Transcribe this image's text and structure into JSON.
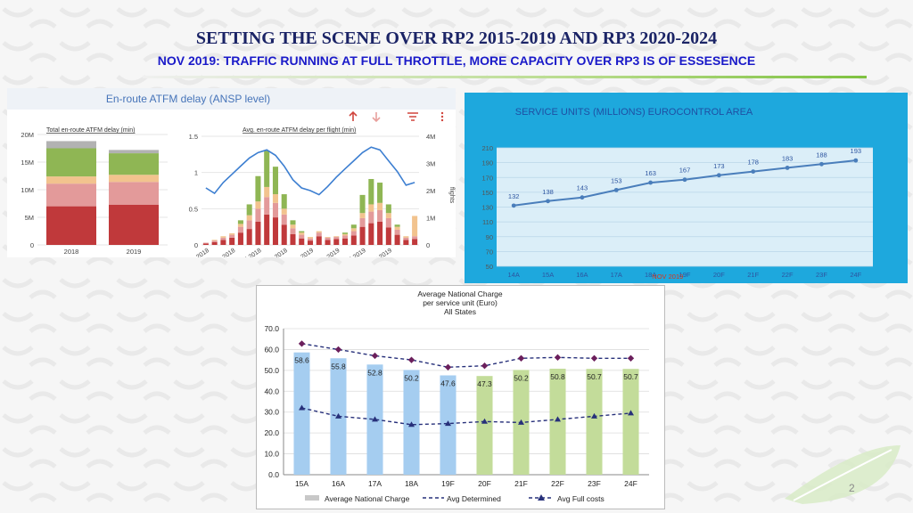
{
  "header": {
    "title": "SETTING THE SCENE OVER RP2 2015-2019 AND RP3 2020-2024",
    "subtitle": "NOV 2019: TRAFFIC RUNNING AT FULL THROTTLE, MORE CAPACITY OVER RP3 IS OF ESSESENCE"
  },
  "page_number": "2",
  "colors": {
    "title": "#1b2466",
    "subtitle": "#1a1ac9",
    "accent_green": "#7fc241",
    "panel_blue": "#1ea8dd"
  },
  "chart_data": [
    {
      "id": "atfm-total",
      "type": "bar",
      "panel_title": "En-route ATFM delay (ANSP level)",
      "title": "Total en-route ATFM delay (min)",
      "categories": [
        "2018",
        "2019"
      ],
      "yticks": [
        "0",
        "5M",
        "10M",
        "15M",
        "20M"
      ],
      "ylim": [
        0,
        20000000
      ],
      "series": [
        {
          "color": "#c0393b",
          "values": [
            7000000,
            7300000
          ]
        },
        {
          "color": "#e39a9a",
          "values": [
            4100000,
            4100000
          ]
        },
        {
          "color": "#f2c38e",
          "values": [
            1300000,
            1300000
          ]
        },
        {
          "color": "#8fb654",
          "values": [
            5100000,
            3900000
          ]
        },
        {
          "color": "#b2b2b2",
          "values": [
            1300000,
            600000
          ]
        }
      ],
      "toolbar_icons": [
        "arrow-up-icon",
        "arrow-down-icon",
        "filter-icon",
        "more-vertical-icon"
      ]
    },
    {
      "id": "atfm-avg",
      "type": "bar",
      "title": "Avg. en-route ATFM delay per flight (min)",
      "xticks": [
        "Jan 2018",
        "Apr 2018",
        "Jul 2018",
        "Oct 2018",
        "Jan 2019",
        "Apr 2019",
        "Jul 2019",
        "Oct 2019"
      ],
      "yticks_left": [
        "0",
        "0.5",
        "1",
        "1.5"
      ],
      "yticks_right": [
        "0",
        "1M",
        "2M",
        "3M",
        "4M"
      ],
      "right_axis_label": "flights",
      "ylim": [
        0,
        1.5
      ],
      "y2lim": [
        0,
        4000000
      ],
      "stack_colors": [
        "#c0393b",
        "#e39a9a",
        "#f2c38e",
        "#8fb654"
      ],
      "bars": [
        [
          0.02,
          0.01,
          0.0,
          0.0
        ],
        [
          0.04,
          0.02,
          0.01,
          0.0
        ],
        [
          0.07,
          0.03,
          0.02,
          0.0
        ],
        [
          0.1,
          0.04,
          0.02,
          0.0
        ],
        [
          0.17,
          0.08,
          0.04,
          0.05
        ],
        [
          0.22,
          0.12,
          0.07,
          0.15
        ],
        [
          0.32,
          0.18,
          0.1,
          0.35
        ],
        [
          0.42,
          0.24,
          0.14,
          0.5
        ],
        [
          0.38,
          0.2,
          0.12,
          0.38
        ],
        [
          0.28,
          0.14,
          0.08,
          0.2
        ],
        [
          0.15,
          0.08,
          0.05,
          0.06
        ],
        [
          0.09,
          0.05,
          0.03,
          0.02
        ],
        [
          0.06,
          0.03,
          0.02,
          0.0
        ],
        [
          0.12,
          0.05,
          0.02,
          0.0
        ],
        [
          0.07,
          0.03,
          0.01,
          0.0
        ],
        [
          0.08,
          0.03,
          0.01,
          0.0
        ],
        [
          0.09,
          0.04,
          0.02,
          0.02
        ],
        [
          0.13,
          0.06,
          0.04,
          0.05
        ],
        [
          0.25,
          0.12,
          0.07,
          0.25
        ],
        [
          0.3,
          0.16,
          0.1,
          0.35
        ],
        [
          0.32,
          0.16,
          0.1,
          0.28
        ],
        [
          0.24,
          0.13,
          0.07,
          0.12
        ],
        [
          0.14,
          0.07,
          0.04,
          0.03
        ],
        [
          0.07,
          0.03,
          0.02,
          0.0
        ],
        [
          0.08,
          0.04,
          0.28,
          0.0
        ]
      ],
      "flights": [
        2100000,
        1900000,
        2300000,
        2600000,
        2900000,
        3200000,
        3400000,
        3500000,
        3300000,
        2900000,
        2400000,
        2100000,
        2000000,
        1850000,
        2150000,
        2500000,
        2800000,
        3100000,
        3400000,
        3600000,
        3500000,
        3100000,
        2700000,
        2200000,
        2300000
      ]
    },
    {
      "id": "service-units",
      "type": "line",
      "title": "SERVICE UNITS (MILLIONS)  EUROCONTROL AREA",
      "categories": [
        "14A",
        "15A",
        "16A",
        "17A",
        "18A",
        "19F",
        "20F",
        "21F",
        "22F",
        "23F",
        "24F"
      ],
      "values": [
        132,
        138,
        143,
        153,
        163,
        167,
        173,
        178,
        183,
        188,
        193
      ],
      "yticks": [
        50,
        70,
        90,
        110,
        130,
        150,
        170,
        190,
        210
      ],
      "ylim": [
        50,
        210
      ],
      "annotation": "NOV 2019",
      "line_color": "#4a7ebb"
    },
    {
      "id": "national-charge",
      "type": "bar",
      "title_lines": [
        "Average National Charge",
        "per service unit (Euro)",
        "All States"
      ],
      "categories": [
        "15A",
        "16A",
        "17A",
        "18A",
        "19F",
        "20F",
        "21F",
        "22F",
        "23F",
        "24F"
      ],
      "yticks": [
        "0.0",
        "10.0",
        "20.0",
        "30.0",
        "40.0",
        "50.0",
        "60.0",
        "70.0"
      ],
      "ylim": [
        0,
        70
      ],
      "series": [
        {
          "name": "Average National Charge",
          "values": [
            58.6,
            55.8,
            52.8,
            50.2,
            47.6,
            47.3,
            50.2,
            50.8,
            50.7,
            50.7
          ],
          "labels": [
            "58.6",
            "55.8",
            "52.8",
            "50.2",
            "47.6",
            "47.3",
            "50.2",
            "50.8",
            "50.7",
            "50.7"
          ]
        },
        {
          "name": "Avg Determined",
          "values": [
            62.8,
            60.0,
            57.0,
            55.0,
            51.5,
            52.2,
            55.8,
            56.2,
            55.8,
            55.8
          ]
        },
        {
          "name": "Avg Full costs",
          "values": [
            32.0,
            28.0,
            26.5,
            24.0,
            24.5,
            25.5,
            25.0,
            26.5,
            28.0,
            29.5
          ]
        }
      ],
      "bar_colors_actual": "#a5cdf0",
      "bar_colors_forecast": "#c3dc9a",
      "legend_position": "bottom"
    }
  ]
}
